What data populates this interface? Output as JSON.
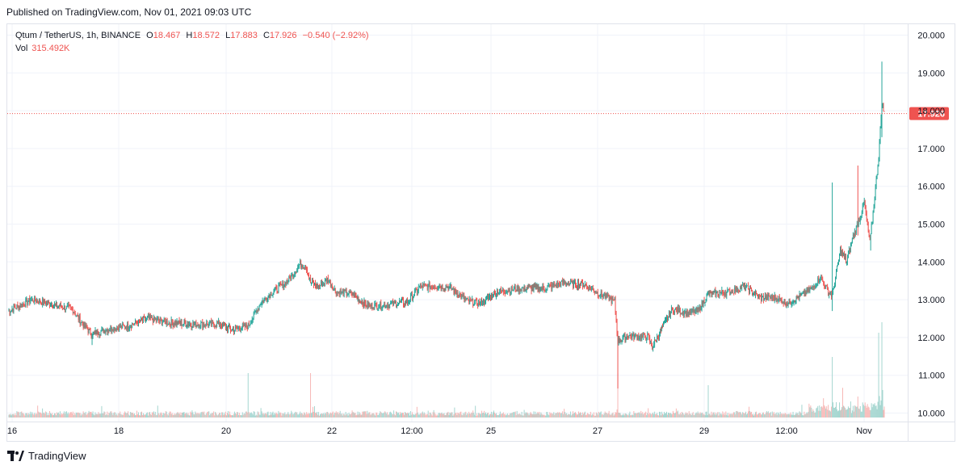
{
  "published_line": "Published on TradingView.com, Nov 01, 2021 09:03 UTC",
  "legend": {
    "symbol": "Qtum / TetherUS, 1h, BINANCE",
    "open_key": "O",
    "open": "18.467",
    "high_key": "H",
    "high": "18.572",
    "low_key": "L",
    "low": "17.883",
    "close_key": "C",
    "close": "17.926",
    "change": "−0.540 (−2.92%)",
    "vol_label": "Vol",
    "vol_value": "315.492K"
  },
  "footer": {
    "brand": "TradingView",
    "logo_icon": "tradingview-logo-icon"
  },
  "colors": {
    "up": "#26a69a",
    "down": "#ef5350",
    "vol_up": "#a5d6d0",
    "vol_down": "#f7b7b5",
    "grid": "#f0f3fa",
    "axis_text": "#131722",
    "price_line": "#ef5350"
  },
  "chart_data": {
    "type": "candlestick",
    "y_range": [
      9.9,
      20.25
    ],
    "y_ticks": [
      "20.000",
      "19.000",
      "18.000",
      "17.000",
      "16.000",
      "15.000",
      "14.000",
      "13.000",
      "12.000",
      "11.000",
      "10.000"
    ],
    "x_ticks": [
      "16",
      "18",
      "20",
      "22",
      "12:00",
      "25",
      "27",
      "29",
      "12:00",
      "Nov"
    ],
    "last_price": "17.926",
    "last_price_value": 17.926,
    "grid": true,
    "anchors": [
      [
        0,
        12.7
      ],
      [
        15,
        12.85
      ],
      [
        30,
        13.0
      ],
      [
        60,
        12.85
      ],
      [
        80,
        12.75
      ],
      [
        95,
        12.3
      ],
      [
        105,
        12.1
      ],
      [
        130,
        12.25
      ],
      [
        150,
        12.3
      ],
      [
        175,
        12.5
      ],
      [
        200,
        12.4
      ],
      [
        230,
        12.35
      ],
      [
        265,
        12.35
      ],
      [
        280,
        12.2
      ],
      [
        300,
        12.3
      ],
      [
        315,
        12.9
      ],
      [
        330,
        13.2
      ],
      [
        350,
        13.5
      ],
      [
        365,
        13.95
      ],
      [
        372,
        13.9
      ],
      [
        378,
        13.45
      ],
      [
        388,
        13.35
      ],
      [
        400,
        13.55
      ],
      [
        410,
        13.2
      ],
      [
        430,
        13.15
      ],
      [
        448,
        12.85
      ],
      [
        470,
        12.85
      ],
      [
        500,
        12.95
      ],
      [
        515,
        13.35
      ],
      [
        550,
        13.35
      ],
      [
        575,
        12.95
      ],
      [
        590,
        12.9
      ],
      [
        610,
        13.2
      ],
      [
        640,
        13.3
      ],
      [
        670,
        13.3
      ],
      [
        695,
        13.45
      ],
      [
        720,
        13.4
      ],
      [
        735,
        13.2
      ],
      [
        750,
        13.05
      ],
      [
        758,
        12.95
      ],
      [
        762,
        11.9
      ],
      [
        775,
        12.05
      ],
      [
        800,
        12.0
      ],
      [
        805,
        11.75
      ],
      [
        815,
        12.15
      ],
      [
        830,
        12.75
      ],
      [
        850,
        12.65
      ],
      [
        862,
        12.7
      ],
      [
        875,
        13.15
      ],
      [
        900,
        13.2
      ],
      [
        920,
        13.35
      ],
      [
        940,
        13.05
      ],
      [
        960,
        13.05
      ],
      [
        975,
        12.9
      ],
      [
        990,
        13.1
      ],
      [
        1005,
        13.3
      ],
      [
        1015,
        13.6
      ],
      [
        1025,
        13.2
      ],
      [
        1030,
        13.1
      ],
      [
        1040,
        14.3
      ],
      [
        1048,
        14.0
      ],
      [
        1055,
        14.6
      ],
      [
        1065,
        15.2
      ],
      [
        1070,
        15.6
      ],
      [
        1077,
        14.5
      ],
      [
        1082,
        15.5
      ],
      [
        1088,
        16.8
      ],
      [
        1092,
        18.2
      ],
      [
        1095,
        17.93
      ]
    ],
    "events": [
      [
        1030,
        16.1,
        12.7
      ],
      [
        1062,
        16.55,
        14.7
      ],
      [
        1078,
        14.3,
        14.3
      ],
      [
        1092,
        19.3,
        17.3
      ]
    ]
  }
}
